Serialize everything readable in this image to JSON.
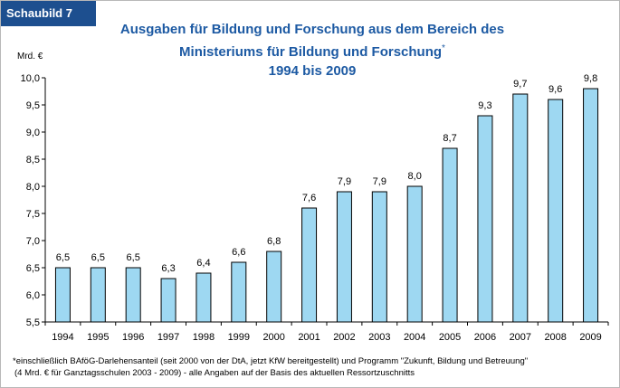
{
  "badge": "Schaubild 7",
  "title": {
    "line1": "Ausgaben für Bildung und Forschung aus dem Bereich des",
    "line2": "Ministeriums für Bildung und Forschung",
    "footnote_mark": "*",
    "line3": "1994 bis 2009"
  },
  "unit_label": "Mrd. €",
  "footnote": {
    "line1": "*einschließlich BAföG-Darlehensanteil (seit 2000 von der DtA, jetzt KfW bereitgestellt) und Programm \"Zukunft, Bildung und Betreuung\"",
    "line2": "(4 Mrd. € für Ganztagsschulen 2003 - 2009) - alle Angaben auf der Basis des aktuellen Ressortzuschnitts"
  },
  "colors": {
    "bar_fill": "#9ed8f2",
    "bar_stroke": "#000000",
    "title": "#1d5aa3",
    "badge_bg": "#1d4f8f"
  },
  "chart_data": {
    "type": "bar",
    "categories": [
      "1994",
      "1995",
      "1996",
      "1997",
      "1998",
      "1999",
      "2000",
      "2001",
      "2002",
      "2003",
      "2004",
      "2005",
      "2006",
      "2007",
      "2008",
      "2009"
    ],
    "values": [
      6.5,
      6.5,
      6.5,
      6.3,
      6.4,
      6.6,
      6.8,
      7.6,
      7.9,
      7.9,
      8.0,
      8.7,
      9.3,
      9.7,
      9.6,
      9.8
    ],
    "value_labels": [
      "6,5",
      "6,5",
      "6,5",
      "6,3",
      "6,4",
      "6,6",
      "6,8",
      "7,6",
      "7,9",
      "7,9",
      "8,0",
      "8,7",
      "9,3",
      "9,7",
      "9,6",
      "9,8"
    ],
    "ylim": [
      5.5,
      10.0
    ],
    "yticks": [
      5.5,
      6.0,
      6.5,
      7.0,
      7.5,
      8.0,
      8.5,
      9.0,
      9.5,
      10.0
    ],
    "ytick_labels": [
      "5,5",
      "6,0",
      "6,5",
      "7,0",
      "7,5",
      "8,0",
      "8,5",
      "9,0",
      "9,5",
      "10,0"
    ],
    "ylabel": "Mrd. €",
    "xlabel": "",
    "grid": false,
    "legend": "none"
  }
}
